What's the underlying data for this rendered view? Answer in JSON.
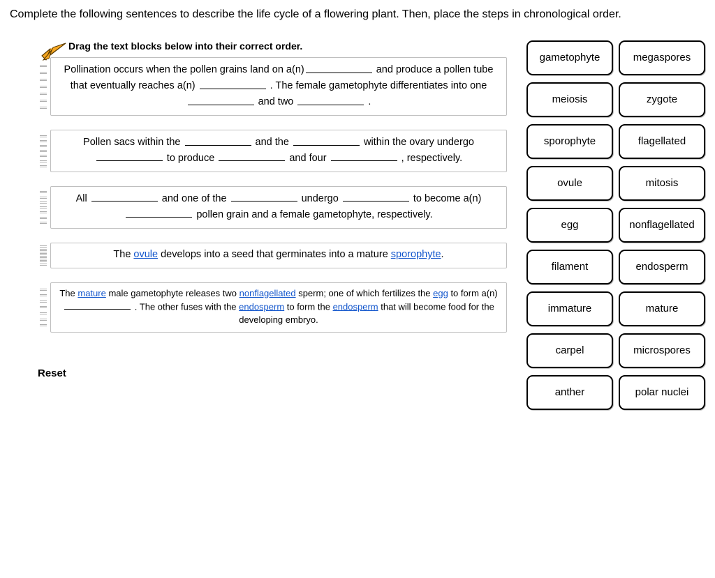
{
  "instruction": "Complete the following sentences to describe the life cycle of a flowering plant. Then, place the steps in chronological order.",
  "drag_header": "Drag the text blocks below into their correct order.",
  "reset_label": "Reset",
  "arrow_color": "#f6a721",
  "arrow_stroke": "#5b3b00",
  "filled_color": "#1155cc",
  "block_border": "#bfbfbf",
  "tile_border": "#000000",
  "blocks": [
    {
      "id": "block-pollination",
      "text_parts": [
        {
          "t": "Pollination occurs when the pollen grains land on a(n)"
        },
        {
          "blank": true
        },
        {
          "t": " and produce a pollen tube that eventually reaches a(n) "
        },
        {
          "blank": true
        },
        {
          "t": " . The female gametophyte differentiates into one "
        },
        {
          "blank": true
        },
        {
          "t": " and two "
        },
        {
          "blank": true
        },
        {
          "t": " ."
        }
      ]
    },
    {
      "id": "block-pollensacs",
      "text_parts": [
        {
          "t": "Pollen sacs within the "
        },
        {
          "blank": true
        },
        {
          "t": " and the "
        },
        {
          "blank": true
        },
        {
          "t": " within the ovary undergo "
        },
        {
          "blank": true
        },
        {
          "t": " to produce "
        },
        {
          "blank": true
        },
        {
          "t": " and four "
        },
        {
          "blank": true
        },
        {
          "t": " , respectively."
        }
      ]
    },
    {
      "id": "block-all",
      "text_parts": [
        {
          "t": "All "
        },
        {
          "blank": true
        },
        {
          "t": " and one of the "
        },
        {
          "blank": true
        },
        {
          "t": " undergo "
        },
        {
          "blank": true
        },
        {
          "t": " to become a(n) "
        },
        {
          "blank": true
        },
        {
          "t": " pollen grain and a female gametophyte, respectively."
        }
      ]
    },
    {
      "id": "block-ovule",
      "text_parts": [
        {
          "t": "The "
        },
        {
          "filled": "ovule"
        },
        {
          "t": " develops into a seed that germinates into a mature "
        },
        {
          "filled": "sporophyte"
        },
        {
          "t": "."
        }
      ]
    },
    {
      "id": "block-mature",
      "small": true,
      "text_parts": [
        {
          "t": "The "
        },
        {
          "filled": "mature"
        },
        {
          "t": " male gametophyte releases two "
        },
        {
          "filled": "nonflagellated"
        },
        {
          "t": " sperm; one of which fertilizes the "
        },
        {
          "filled": "egg"
        },
        {
          "t": " to form a(n) "
        },
        {
          "blank": true
        },
        {
          "t": " . The other fuses with the "
        },
        {
          "filled": "endosperm"
        },
        {
          "t": " to form the "
        },
        {
          "filled": "endosperm"
        },
        {
          "t": " that will become food for the developing embryo."
        }
      ]
    }
  ],
  "tiles": [
    "gametophyte",
    "megaspores",
    "meiosis",
    "zygote",
    "sporophyte",
    "flagellated",
    "ovule",
    "mitosis",
    "egg",
    "nonflagellated",
    "filament",
    "endosperm",
    "immature",
    "mature",
    "carpel",
    "microspores",
    "anther",
    "polar nuclei"
  ]
}
